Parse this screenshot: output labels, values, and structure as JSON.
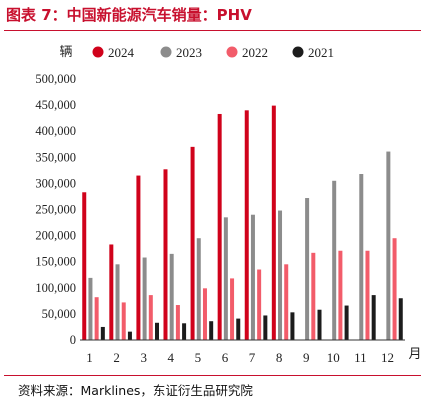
{
  "figure": {
    "title": "图表 7：中国新能源汽车销量：PHV",
    "source": "资料来源：Marklines，东证衍生品研究院"
  },
  "chart_data": {
    "type": "bar",
    "ylabel": "辆",
    "xlabel": "月",
    "ylim": [
      0,
      500000
    ],
    "yticks": [
      "0",
      "50,000",
      "100,000",
      "150,000",
      "200,000",
      "250,000",
      "300,000",
      "350,000",
      "400,000",
      "450,000",
      "500,000"
    ],
    "categories": [
      "1",
      "2",
      "3",
      "4",
      "5",
      "6",
      "7",
      "8",
      "9",
      "10",
      "11",
      "12"
    ],
    "legend_position": "top",
    "grid": false,
    "series": [
      {
        "name": "2024",
        "color": "#d0021b",
        "values": [
          283000,
          183000,
          315000,
          327000,
          370000,
          433000,
          440000,
          449000,
          null,
          null,
          null,
          null
        ]
      },
      {
        "name": "2023",
        "color": "#8c8c8c",
        "values": [
          119000,
          145000,
          158000,
          165000,
          195000,
          235000,
          240000,
          248000,
          272000,
          305000,
          318000,
          361000
        ]
      },
      {
        "name": "2022",
        "color": "#f25c6a",
        "values": [
          82000,
          72000,
          86000,
          67000,
          99000,
          118000,
          135000,
          145000,
          167000,
          171000,
          171000,
          195000
        ]
      },
      {
        "name": "2021",
        "color": "#1c1c1c",
        "values": [
          25000,
          16000,
          33000,
          32000,
          36000,
          41000,
          47000,
          53000,
          58000,
          66000,
          86000,
          80000
        ]
      }
    ]
  }
}
